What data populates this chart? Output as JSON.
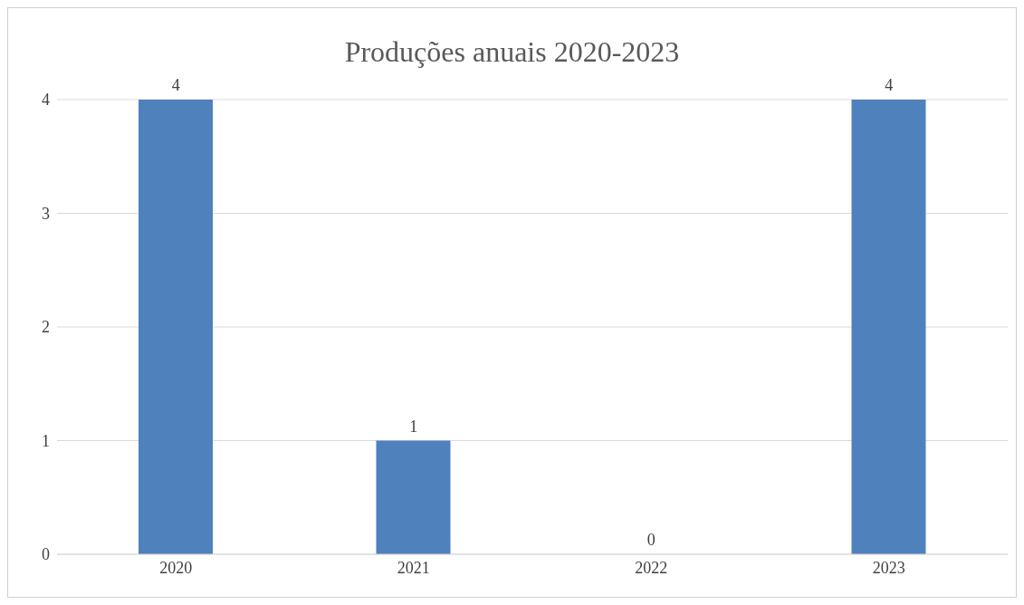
{
  "chart_data": {
    "type": "bar",
    "title": "Produções anuais 2020-2023",
    "categories": [
      "2020",
      "2021",
      "2022",
      "2023"
    ],
    "values": [
      4,
      1,
      0,
      4
    ],
    "color": "#4f81bd",
    "ylim": [
      0,
      4
    ],
    "yticks": [
      0,
      1,
      2,
      3,
      4
    ],
    "grid": "y",
    "data_labels": true
  }
}
